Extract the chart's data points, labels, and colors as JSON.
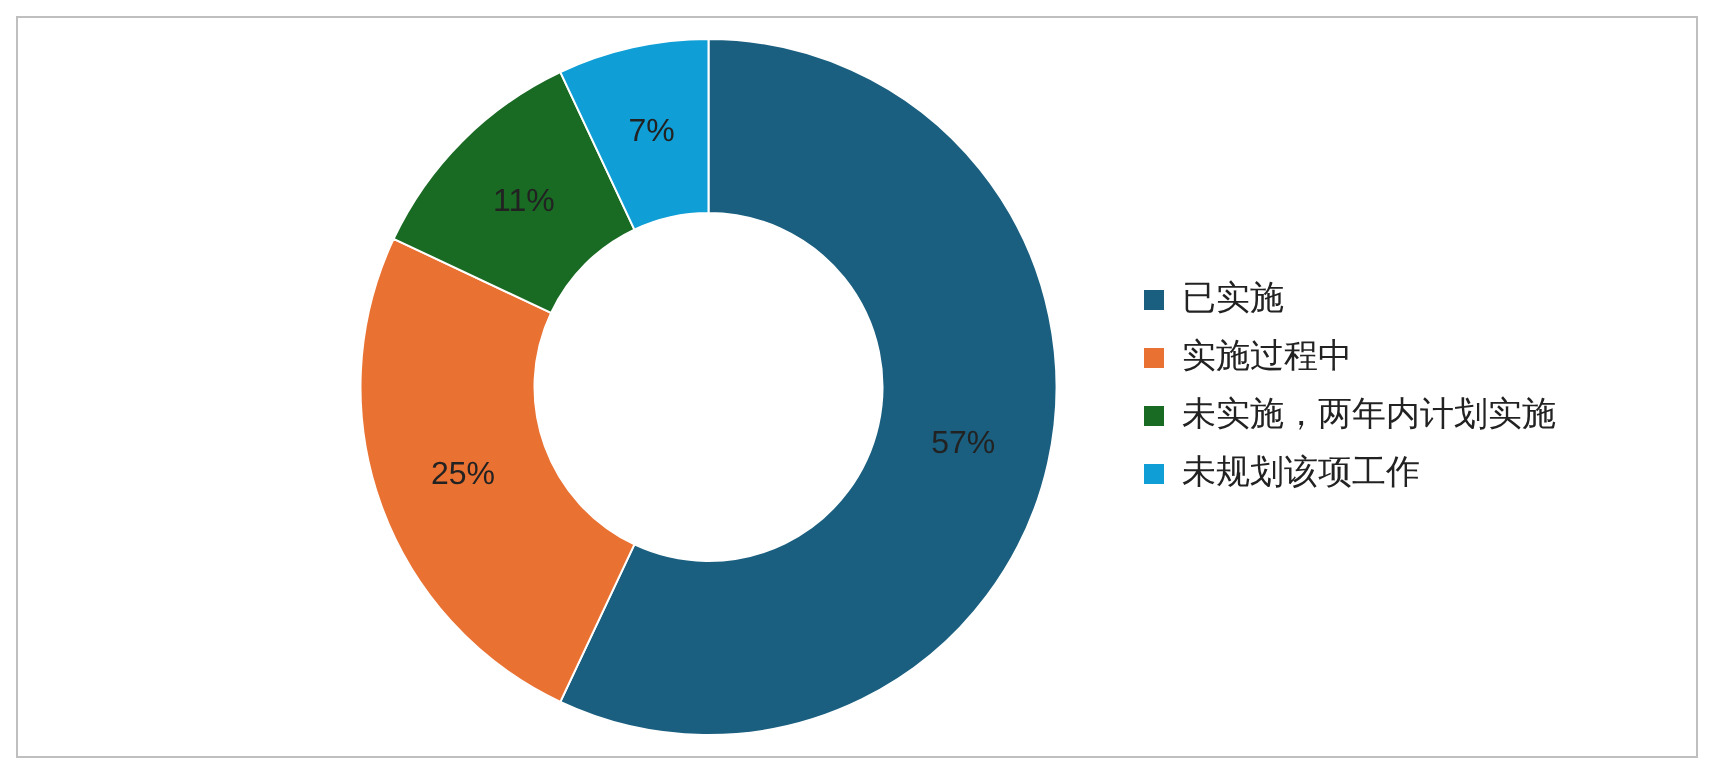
{
  "chart_data": {
    "type": "donut",
    "categories": [
      "已实施",
      "实施过程中",
      "未实施，两年内计划实施",
      "未规划该项工作"
    ],
    "values": [
      57,
      25,
      11,
      7
    ],
    "colors": [
      "#1a5f7f",
      "#e97132",
      "#196b24",
      "#0f9ed5"
    ],
    "value_labels": [
      "57%",
      "25%",
      "11%",
      "7%"
    ],
    "legend": "right"
  }
}
